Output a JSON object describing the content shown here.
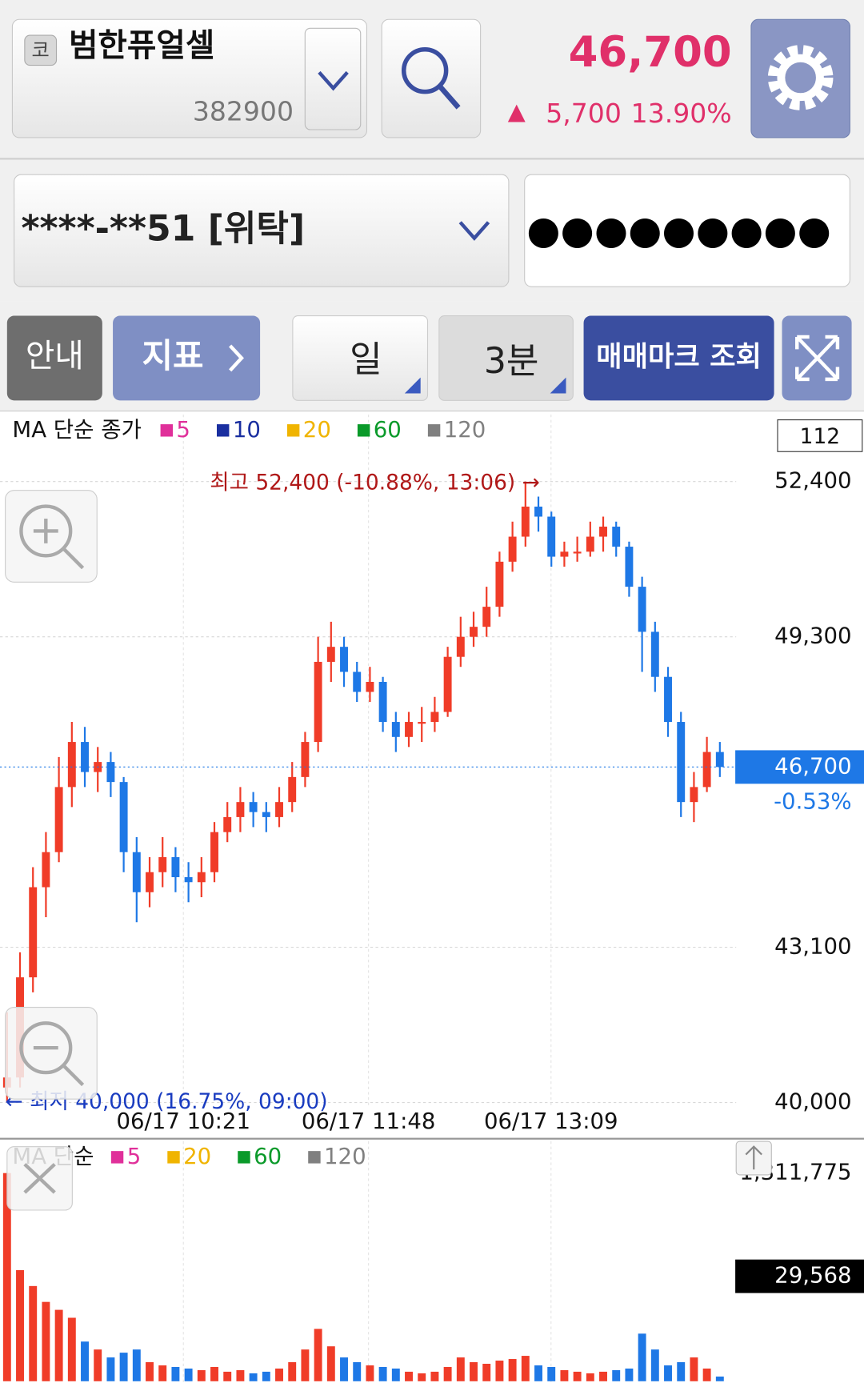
{
  "header": {
    "market_badge": "코",
    "stock_name": "범한퓨얼셀",
    "code": "382900",
    "price": "46,700",
    "change_arrow": "▲",
    "change": "5,700",
    "change_pct": "13.90%"
  },
  "account": {
    "number": "****-**51 [위탁]",
    "password": "●●●●●●●●●"
  },
  "toolbar": {
    "guide": "안내",
    "indicator": "지표",
    "period": "일",
    "interval": "3분",
    "trade_marks": "매매마크 조회"
  },
  "chart_data": {
    "type": "candlestick",
    "legend_title": "MA 단순 종가",
    "ma_legend": [
      {
        "name": "5",
        "color": "#e0309a"
      },
      {
        "name": "10",
        "color": "#1a2fa0"
      },
      {
        "name": "20",
        "color": "#f0b400"
      },
      {
        "name": "60",
        "color": "#0a9a2a"
      },
      {
        "name": "120",
        "color": "#808080"
      }
    ],
    "count_label": "112",
    "high_annotation": "최고 52,400 (-10.88%, 13:06) →",
    "low_annotation": "← 최저 40,000 (16.75%, 09:00)",
    "xticks": [
      "06/17 10:21",
      "06/17 11:48",
      "06/17 13:09"
    ],
    "ylim": [
      40000,
      52400
    ],
    "yticks": [
      {
        "value": 52400,
        "label": "52,400"
      },
      {
        "value": 49300,
        "label": "49,300"
      },
      {
        "value": 43100,
        "label": "43,100"
      },
      {
        "value": 40000,
        "label": "40,000"
      }
    ],
    "current": {
      "value": 46700,
      "label": "46,700"
    },
    "current_change": "-0.53%",
    "up_color": "#f03c28",
    "down_color": "#1e78e6",
    "candles": [
      [
        40300,
        41800,
        40000,
        40500
      ],
      [
        40500,
        43000,
        40300,
        42500
      ],
      [
        42500,
        44700,
        42200,
        44300
      ],
      [
        44300,
        45400,
        43700,
        45000
      ],
      [
        45000,
        46900,
        44800,
        46300
      ],
      [
        46300,
        47600,
        45900,
        47200
      ],
      [
        47200,
        47500,
        46300,
        46600
      ],
      [
        46600,
        47100,
        46200,
        46800
      ],
      [
        46800,
        47000,
        46100,
        46400
      ],
      [
        46400,
        46500,
        44600,
        45000
      ],
      [
        45000,
        45300,
        43600,
        44200
      ],
      [
        44200,
        44900,
        43900,
        44600
      ],
      [
        44600,
        45300,
        44300,
        44900
      ],
      [
        44900,
        45100,
        44200,
        44500
      ],
      [
        44500,
        44800,
        44000,
        44400
      ],
      [
        44400,
        44900,
        44100,
        44600
      ],
      [
        44600,
        45600,
        44400,
        45400
      ],
      [
        45400,
        46000,
        45200,
        45700
      ],
      [
        45700,
        46300,
        45400,
        46000
      ],
      [
        46000,
        46200,
        45500,
        45800
      ],
      [
        45800,
        46000,
        45400,
        45700
      ],
      [
        45700,
        46300,
        45500,
        46000
      ],
      [
        46000,
        46800,
        45800,
        46500
      ],
      [
        46500,
        47400,
        46300,
        47200
      ],
      [
        47200,
        49300,
        47000,
        48800
      ],
      [
        48800,
        49600,
        48400,
        49100
      ],
      [
        49100,
        49300,
        48300,
        48600
      ],
      [
        48600,
        48800,
        48000,
        48200
      ],
      [
        48200,
        48700,
        48000,
        48400
      ],
      [
        48400,
        48500,
        47400,
        47600
      ],
      [
        47600,
        47800,
        47000,
        47300
      ],
      [
        47300,
        47800,
        47100,
        47600
      ],
      [
        47600,
        47900,
        47200,
        47600
      ],
      [
        47600,
        48100,
        47400,
        47800
      ],
      [
        47800,
        49100,
        47700,
        48900
      ],
      [
        48900,
        49700,
        48700,
        49300
      ],
      [
        49300,
        49800,
        49100,
        49500
      ],
      [
        49500,
        50300,
        49300,
        49900
      ],
      [
        49900,
        51000,
        49700,
        50800
      ],
      [
        50800,
        51600,
        50600,
        51300
      ],
      [
        51300,
        52400,
        51100,
        51900
      ],
      [
        51900,
        52100,
        51400,
        51700
      ],
      [
        51700,
        51800,
        50700,
        50900
      ],
      [
        50900,
        51200,
        50700,
        51000
      ],
      [
        51000,
        51300,
        50800,
        51000
      ],
      [
        51000,
        51600,
        50900,
        51300
      ],
      [
        51300,
        51700,
        51000,
        51500
      ],
      [
        51500,
        51600,
        50900,
        51100
      ],
      [
        51100,
        51200,
        50100,
        50300
      ],
      [
        50300,
        50500,
        48600,
        49400
      ],
      [
        49400,
        49600,
        48200,
        48500
      ],
      [
        48500,
        48700,
        47300,
        47600
      ],
      [
        47600,
        47800,
        45700,
        46000
      ],
      [
        46000,
        46600,
        45600,
        46300
      ],
      [
        46300,
        47300,
        46200,
        47000
      ],
      [
        47000,
        47200,
        46500,
        46700
      ]
    ]
  },
  "volume_chart": {
    "type": "bar",
    "legend_title": "MA 단순",
    "ma_legend": [
      {
        "name": "5",
        "color": "#e0309a"
      },
      {
        "name": "20",
        "color": "#f0b400"
      },
      {
        "name": "60",
        "color": "#0a9a2a"
      },
      {
        "name": "120",
        "color": "#808080"
      }
    ],
    "ylim": [
      0,
      1311775
    ],
    "yticks": [
      {
        "value": 1311775,
        "label": "1,311,775"
      }
    ],
    "current": {
      "value": 29568,
      "label": "29,568"
    },
    "values": [
      1311775,
      700000,
      600000,
      500000,
      450000,
      400000,
      250000,
      200000,
      150000,
      180000,
      200000,
      120000,
      100000,
      90000,
      80000,
      70000,
      90000,
      60000,
      70000,
      50000,
      60000,
      80000,
      120000,
      200000,
      330000,
      220000,
      150000,
      120000,
      100000,
      90000,
      80000,
      60000,
      50000,
      60000,
      90000,
      150000,
      120000,
      110000,
      130000,
      140000,
      160000,
      100000,
      90000,
      70000,
      60000,
      50000,
      60000,
      70000,
      80000,
      300000,
      200000,
      100000,
      120000,
      150000,
      80000,
      29568
    ]
  }
}
